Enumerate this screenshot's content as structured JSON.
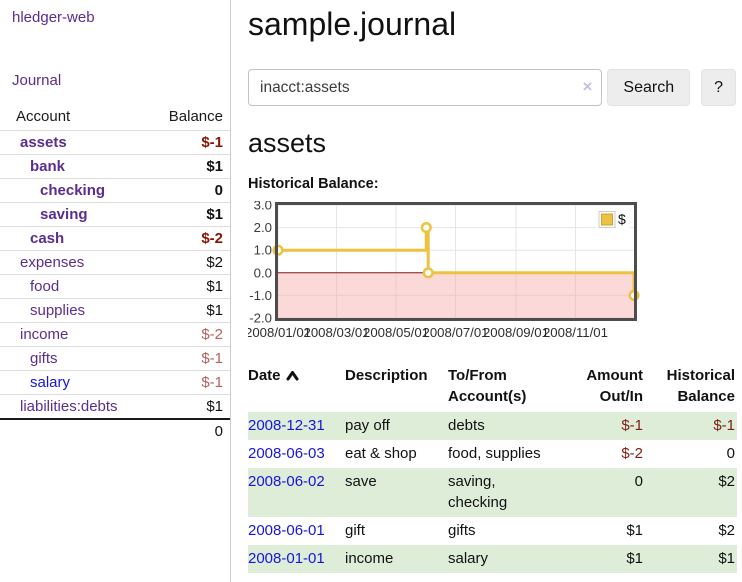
{
  "app": {
    "title": "hledger-web"
  },
  "colors": {
    "link_purple": "#5b2d91",
    "link_blue": "#1515dd",
    "negative_dark": "#8b1505",
    "negative_dim": "#b4605c",
    "row_green": "#deedd8",
    "series_yellow": "#edc240"
  },
  "sidebar": {
    "nav": {
      "journal_label": "Journal"
    },
    "accounts_table": {
      "headers": {
        "account": "Account",
        "balance": "Balance"
      },
      "rows": [
        {
          "name": "assets",
          "level": 1,
          "bold": true,
          "balance": "$-1",
          "negative": true
        },
        {
          "name": "bank",
          "level": 2,
          "bold": true,
          "balance": "$1",
          "negative": false
        },
        {
          "name": "checking",
          "level": 3,
          "bold": true,
          "balance": "0",
          "negative": false
        },
        {
          "name": "saving",
          "level": 3,
          "bold": true,
          "balance": "$1",
          "negative": false
        },
        {
          "name": "cash",
          "level": 2,
          "bold": true,
          "balance": "$-2",
          "negative": true
        },
        {
          "name": "expenses",
          "level": 1,
          "bold": false,
          "balance": "$2",
          "negative": false
        },
        {
          "name": "food",
          "level": 2,
          "bold": false,
          "balance": "$1",
          "negative": false
        },
        {
          "name": "supplies",
          "level": 2,
          "bold": false,
          "balance": "$1",
          "negative": false
        },
        {
          "name": "income",
          "level": 1,
          "bold": false,
          "balance": "$-2",
          "negative": true
        },
        {
          "name": "gifts",
          "level": 2,
          "bold": false,
          "balance": "$-1",
          "negative": true
        },
        {
          "name": "salary",
          "level": 2,
          "bold": false,
          "balance": "$-1",
          "negative": true,
          "unvisited": true
        },
        {
          "name": "liabilities:debts",
          "level": 1,
          "bold": false,
          "balance": "$1",
          "negative": false
        }
      ],
      "total": "0"
    }
  },
  "main": {
    "title": "sample.journal",
    "search": {
      "value": "inacct:assets",
      "clear_icon": "×",
      "button_label": "Search",
      "help_label": "?"
    },
    "account_heading": "assets",
    "chart_heading": "Historical Balance:"
  },
  "chart_data": {
    "type": "line",
    "title": "Historical Balance:",
    "steps": true,
    "series": [
      {
        "name": "$",
        "color": "#edc240",
        "points": [
          {
            "date": "2008-01-01",
            "day": 0,
            "y": 1
          },
          {
            "date": "2008-06-01",
            "day": 152,
            "y": 2
          },
          {
            "date": "2008-06-03",
            "day": 154,
            "y": 0
          },
          {
            "date": "2008-12-31",
            "day": 365,
            "y": -1
          }
        ]
      }
    ],
    "x_ticks": [
      {
        "label": "2008/01/01",
        "day": 0
      },
      {
        "label": "2008/03/01",
        "day": 60
      },
      {
        "label": "2008/05/01",
        "day": 121
      },
      {
        "label": "2008/07/01",
        "day": 182
      },
      {
        "label": "2008/09/01",
        "day": 244
      },
      {
        "label": "2008/11/01",
        "day": 305
      }
    ],
    "y_ticks": [
      "3.0",
      "2.0",
      "1.0",
      "0.0",
      "-1.0",
      "-2.0"
    ],
    "ylim": [
      -2,
      3
    ],
    "xlim_days": [
      0,
      365
    ],
    "grid": true,
    "grid_color": "#e6e6e6",
    "border_color": "#4d4d4d",
    "negative_region_fill": "rgba(244,160,160,0.40)",
    "zero_line_color": "#8f1414",
    "legend": {
      "position": "top-right",
      "label": "$",
      "swatch_color": "#edc240"
    }
  },
  "register_table": {
    "headers": {
      "date": "Date",
      "description": "Description",
      "accounts": "To/From Account(s)",
      "amount": "Amount Out/In",
      "balance": "Historical Balance"
    },
    "sort": {
      "column": "date",
      "direction": "ascending"
    },
    "rows": [
      {
        "date": "2008-12-31",
        "description": "pay off",
        "accounts": "debts",
        "amount": "$-1",
        "balance": "$-1",
        "shaded": true
      },
      {
        "date": "2008-06-03",
        "description": "eat & shop",
        "accounts": "food, supplies",
        "amount": "$-2",
        "balance": "0",
        "shaded": false
      },
      {
        "date": "2008-06-02",
        "description": "save",
        "accounts": "saving, checking",
        "amount": "0",
        "balance": "$2",
        "shaded": true
      },
      {
        "date": "2008-06-01",
        "description": "gift",
        "accounts": "gifts",
        "amount": "$1",
        "balance": "$2",
        "shaded": false
      },
      {
        "date": "2008-01-01",
        "description": "income",
        "accounts": "salary",
        "amount": "$1",
        "balance": "$1",
        "shaded": true
      }
    ]
  }
}
